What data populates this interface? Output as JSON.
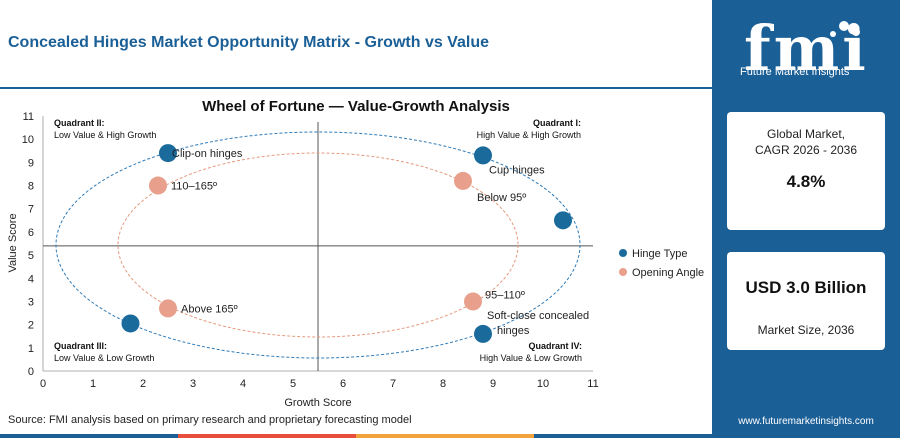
{
  "header": {
    "title": "Concealed Hinges Market Opportunity Matrix - Growth vs Value"
  },
  "chart_data": {
    "type": "scatter",
    "title": "Wheel of Fortune — Value-Growth Analysis",
    "xlabel": "Growth Score",
    "ylabel": "Value Score",
    "xlim": [
      0,
      11
    ],
    "ylim": [
      0,
      11
    ],
    "x_ticks": [
      "0",
      "1",
      "2",
      "3",
      "4",
      "5",
      "6",
      "7",
      "8",
      "9",
      "10",
      "11"
    ],
    "y_ticks": [
      "0",
      "1",
      "2",
      "3",
      "4",
      "5",
      "6",
      "7",
      "8",
      "9",
      "10",
      "11"
    ],
    "divider": {
      "x": 5.5,
      "y": 5.4
    },
    "grid": false,
    "legend_position": "right",
    "quadrants": [
      {
        "name": "Quadrant II:",
        "desc": "Low Value & High Growth",
        "position": "top-left"
      },
      {
        "name": "Quadrant I:",
        "desc": "High Value & High Growth",
        "position": "top-right"
      },
      {
        "name": "Quadrant III:",
        "desc": "Low Value & Low Growth",
        "position": "bottom-left"
      },
      {
        "name": "Quadrant IV:",
        "desc": "High Value & Low Growth",
        "position": "bottom-right"
      }
    ],
    "series": [
      {
        "name": "Hinge Type",
        "color": "#1b6a9c",
        "points": [
          {
            "label": "Clip-on hinges",
            "x": 2.5,
            "y": 9.4
          },
          {
            "label": "Cup hinges",
            "x": 8.8,
            "y": 9.3
          },
          {
            "label": "",
            "x": 10.4,
            "y": 6.5
          },
          {
            "label": "",
            "x": 1.75,
            "y": 2.05
          },
          {
            "label": "Soft-close concealed hinges",
            "x": 8.8,
            "y": 1.6
          }
        ]
      },
      {
        "name": "Opening Angle",
        "color": "#e8a08c",
        "points": [
          {
            "label": "110–165º",
            "x": 2.3,
            "y": 8.0
          },
          {
            "label": "Below 95º",
            "x": 8.4,
            "y": 8.2
          },
          {
            "label": "Above 165º",
            "x": 2.5,
            "y": 2.7
          },
          {
            "label": "95–110º",
            "x": 8.6,
            "y": 3.0
          }
        ]
      }
    ]
  },
  "source": "Source: FMI analysis based on primary research and proprietary forecasting model",
  "sidebar": {
    "logo_text": "fmi",
    "logo_sub": "Future Market Insights",
    "cagr_label_line1": "Global Market,",
    "cagr_label_line2": "CAGR 2026 - 2036",
    "cagr_value": "4.8%",
    "size_value": "USD 3.0 Billion",
    "size_label": "Market Size, 2036",
    "website": "www.futuremarketinsights.com"
  },
  "colors": {
    "brand": "#1b5f97",
    "bar": [
      "#1b5f97",
      "#e94e3d",
      "#f2a33c",
      "#1b5f97"
    ]
  }
}
